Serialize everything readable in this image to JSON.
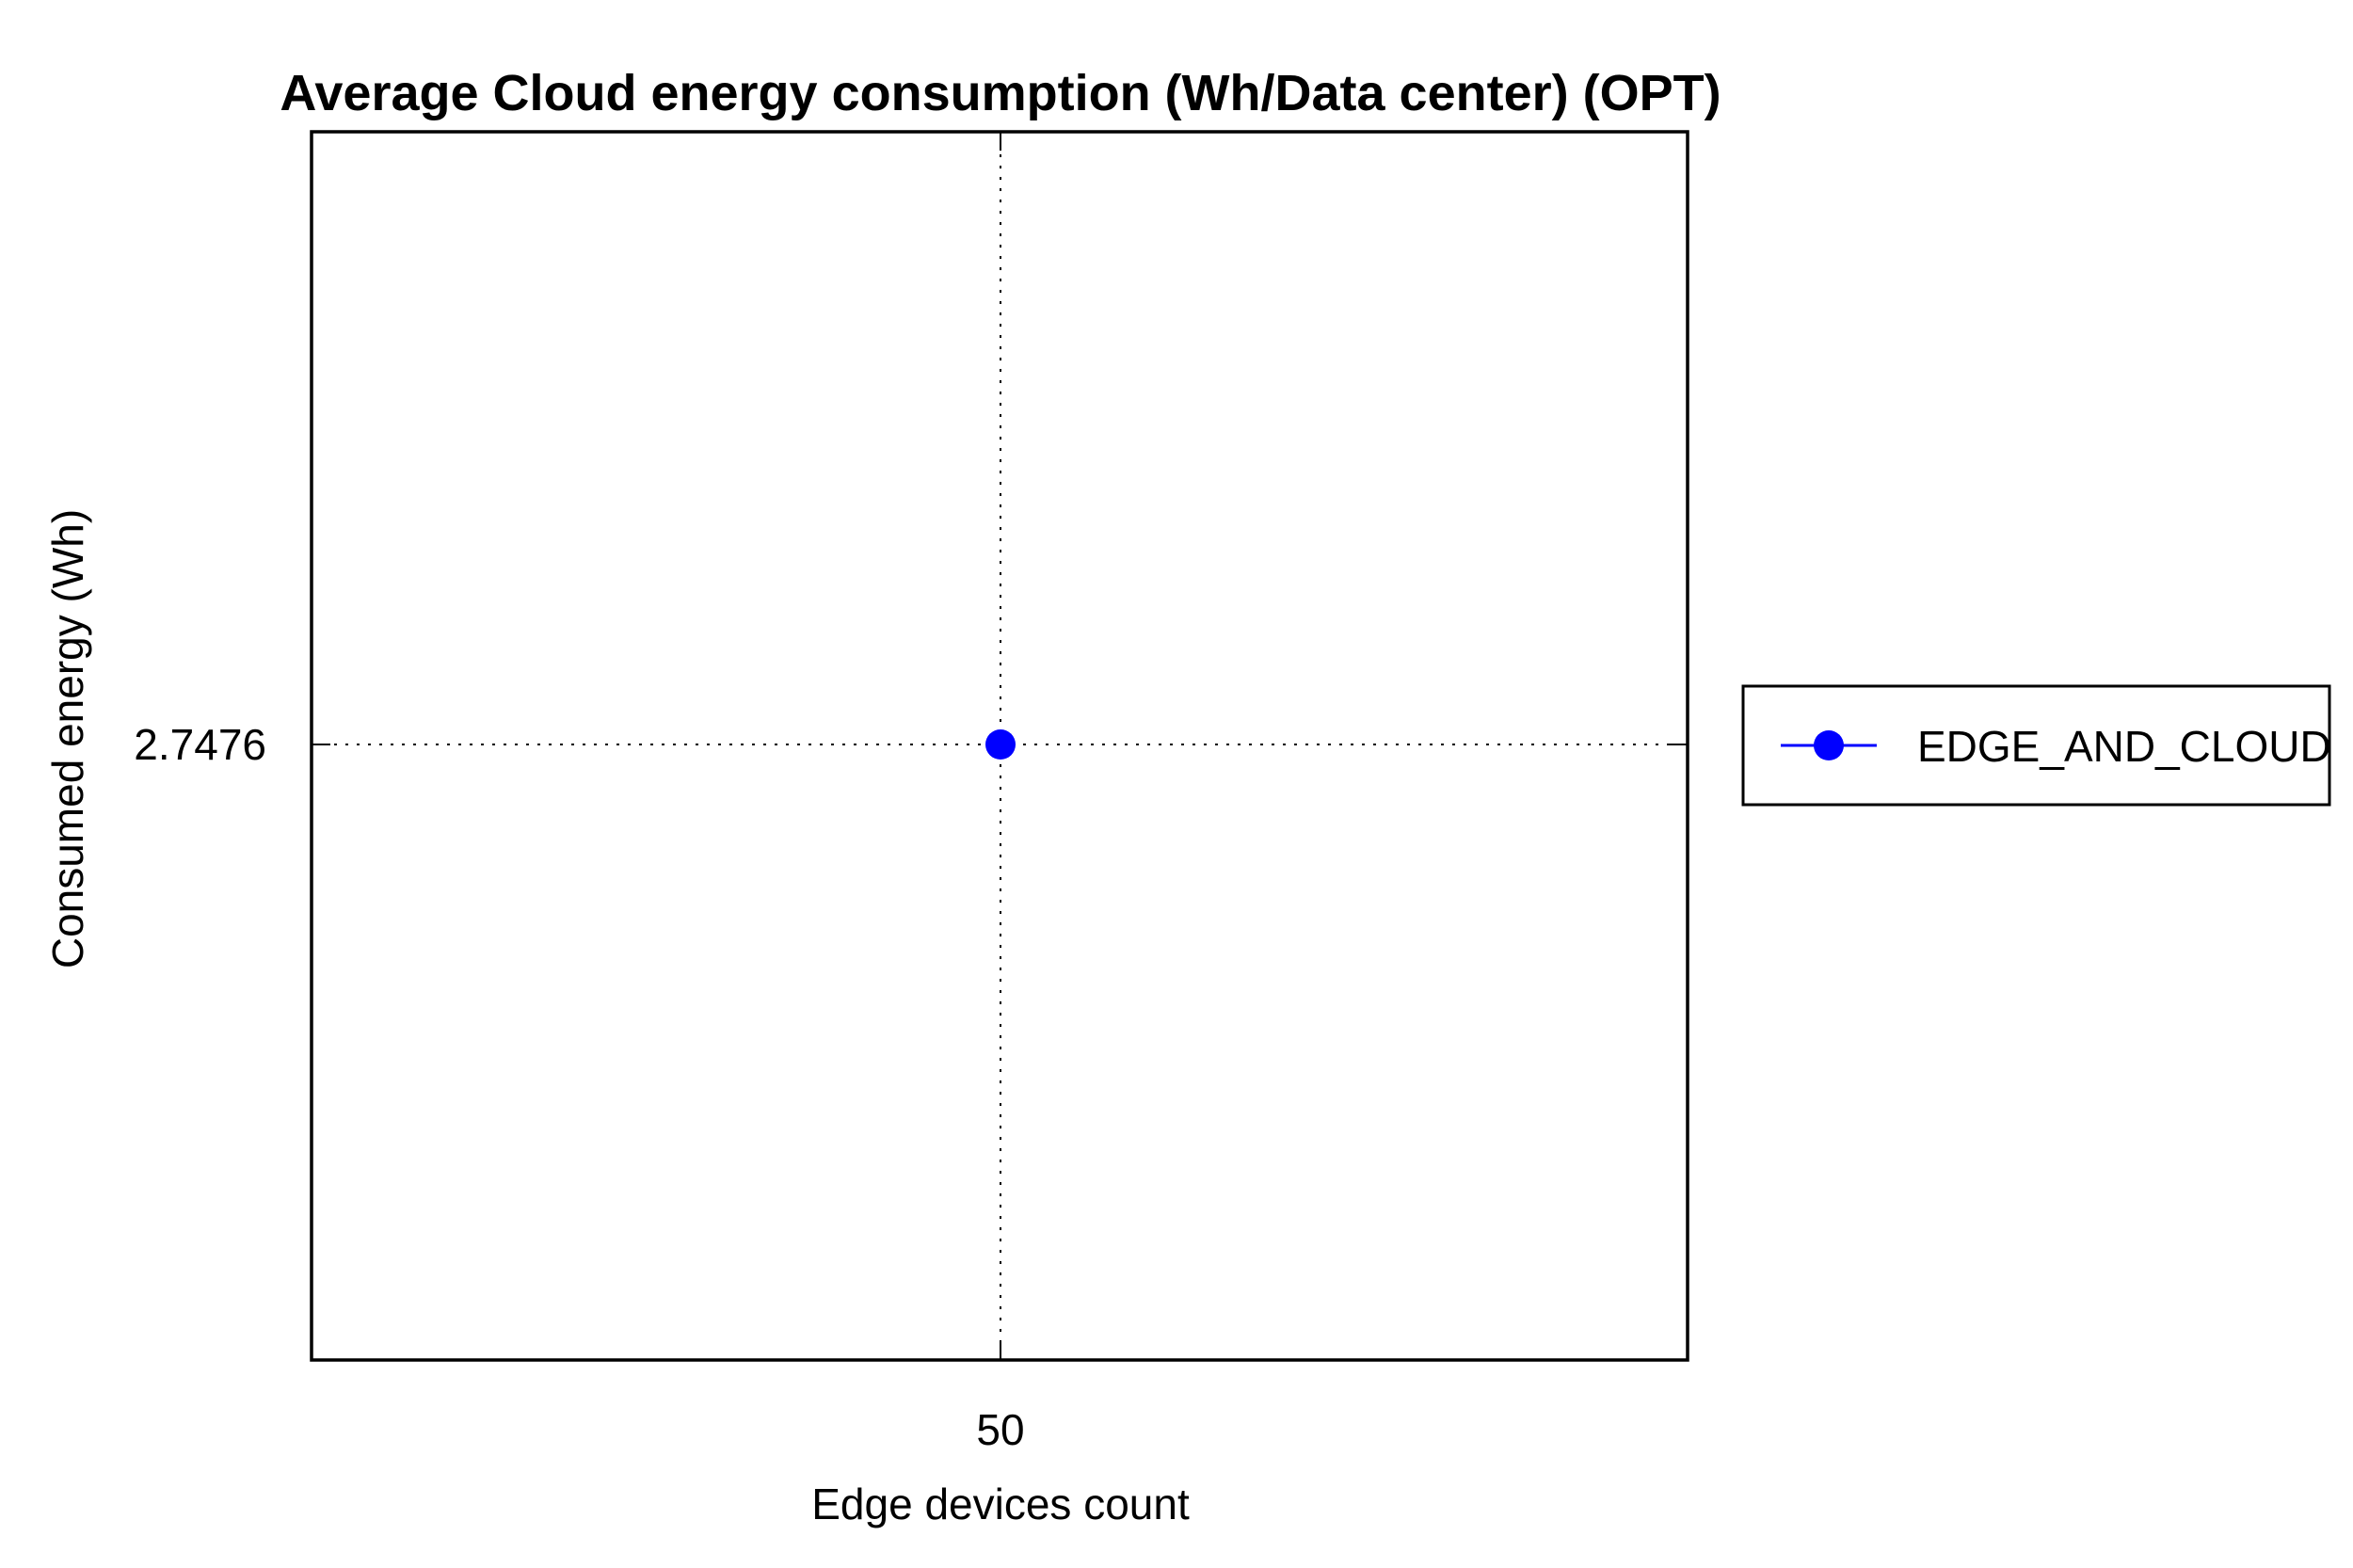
{
  "chart_data": {
    "type": "line",
    "title": "Average Cloud energy consumption (Wh/Data center) (OPT)",
    "xlabel": "Edge devices count",
    "ylabel": "Consumed energy (Wh)",
    "x": [
      50
    ],
    "xticks": [
      "50"
    ],
    "yticks": [
      "2.7476"
    ],
    "series": [
      {
        "name": "EDGE_AND_CLOUD",
        "x": [
          50
        ],
        "y": [
          2.7476
        ],
        "color": "#0000FF",
        "marker": "circle"
      }
    ],
    "grid": true,
    "legend_position": "right"
  }
}
